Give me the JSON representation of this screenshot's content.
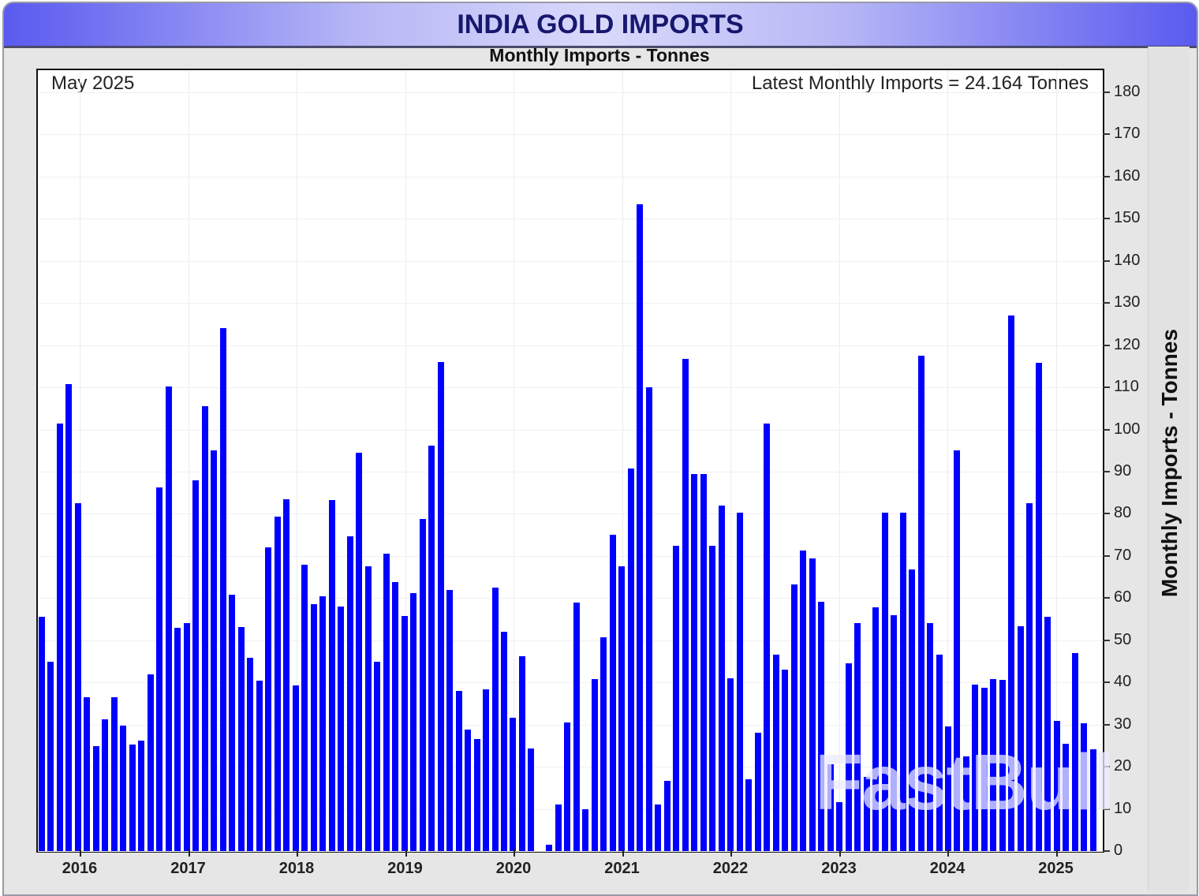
{
  "header": {
    "title": "INDIA GOLD IMPORTS",
    "subtitle": "Monthly Imports - Tonnes"
  },
  "annotations": {
    "date": "May 2025",
    "latest": "Latest Monthly Imports = 24.164 Tonnes",
    "watermark": "FastBull"
  },
  "colors": {
    "bar": "#0000ff",
    "banner_edge": "#5a5af0",
    "banner_center": "#d9d9fb",
    "title_text": "#17176e"
  },
  "chart_data": {
    "type": "bar",
    "title": "INDIA GOLD IMPORTS",
    "subtitle": "Monthly Imports - Tonnes",
    "xlabel": "",
    "ylabel": "Monthly Imports - Tonnes",
    "ylim": [
      0,
      180
    ],
    "yticks": [
      0,
      10,
      20,
      30,
      40,
      50,
      60,
      70,
      80,
      90,
      100,
      110,
      120,
      130,
      140,
      150,
      160,
      170,
      180
    ],
    "xticks": [
      "2016",
      "2017",
      "2018",
      "2019",
      "2020",
      "2021",
      "2022",
      "2023",
      "2024",
      "2025"
    ],
    "grid": true,
    "legend": null,
    "y_axis_position": "right",
    "start_month": "2015-09",
    "end_month": "2025-05",
    "categories": [
      "2015-09",
      "2015-10",
      "2015-11",
      "2015-12",
      "2016-01",
      "2016-02",
      "2016-03",
      "2016-04",
      "2016-05",
      "2016-06",
      "2016-07",
      "2016-08",
      "2016-09",
      "2016-10",
      "2016-11",
      "2016-12",
      "2017-01",
      "2017-02",
      "2017-03",
      "2017-04",
      "2017-05",
      "2017-06",
      "2017-07",
      "2017-08",
      "2017-09",
      "2017-10",
      "2017-11",
      "2017-12",
      "2018-01",
      "2018-02",
      "2018-03",
      "2018-04",
      "2018-05",
      "2018-06",
      "2018-07",
      "2018-08",
      "2018-09",
      "2018-10",
      "2018-11",
      "2018-12",
      "2019-01",
      "2019-02",
      "2019-03",
      "2019-04",
      "2019-05",
      "2019-06",
      "2019-07",
      "2019-08",
      "2019-09",
      "2019-10",
      "2019-11",
      "2019-12",
      "2020-01",
      "2020-02",
      "2020-03",
      "2020-04",
      "2020-05",
      "2020-06",
      "2020-07",
      "2020-08",
      "2020-09",
      "2020-10",
      "2020-11",
      "2020-12",
      "2021-01",
      "2021-02",
      "2021-03",
      "2021-04",
      "2021-05",
      "2021-06",
      "2021-07",
      "2021-08",
      "2021-09",
      "2021-10",
      "2021-11",
      "2021-12",
      "2022-01",
      "2022-02",
      "2022-03",
      "2022-04",
      "2022-05",
      "2022-06",
      "2022-07",
      "2022-08",
      "2022-09",
      "2022-10",
      "2022-11",
      "2022-12",
      "2023-01",
      "2023-02",
      "2023-03",
      "2023-04",
      "2023-05",
      "2023-06",
      "2023-07",
      "2023-08",
      "2023-09",
      "2023-10",
      "2023-11",
      "2023-12",
      "2024-01",
      "2024-02",
      "2024-03",
      "2024-04",
      "2024-05",
      "2024-06",
      "2024-07",
      "2024-08",
      "2024-09",
      "2024-10",
      "2024-11",
      "2024-12",
      "2025-01",
      "2025-02",
      "2025-03",
      "2025-04",
      "2025-05"
    ],
    "values": [
      55.6,
      45.0,
      101.5,
      110.8,
      82.5,
      36.5,
      24.8,
      31.2,
      36.5,
      29.8,
      25.3,
      26.2,
      42.0,
      86.2,
      110.2,
      53.0,
      54.0,
      88.0,
      105.6,
      95.0,
      124.0,
      60.9,
      53.2,
      45.8,
      40.4,
      72.0,
      79.4,
      83.4,
      39.3,
      68.0,
      58.6,
      60.5,
      83.2,
      58.1,
      74.7,
      94.5,
      67.6,
      45.0,
      70.6,
      63.8,
      55.8,
      61.2,
      78.8,
      96.2,
      116.0,
      62.0,
      38.0,
      28.8,
      26.5,
      38.3,
      62.5,
      52.0,
      31.6,
      46.2,
      24.3,
      0.0,
      1.5,
      11.0,
      30.5,
      58.9,
      9.9,
      40.8,
      50.7,
      75.0,
      67.6,
      90.8,
      153.5,
      110.0,
      11.0,
      16.7,
      72.4,
      116.8,
      89.4,
      89.4,
      72.4,
      82.0,
      41.0,
      80.3,
      17.0,
      28.0,
      101.5,
      46.6,
      43.0,
      63.2,
      71.3,
      69.5,
      59.2,
      20.5,
      11.6,
      44.5,
      54.0,
      17.5,
      57.8,
      80.3,
      56.0,
      80.3,
      66.8,
      117.6,
      54.0,
      46.6,
      29.5,
      95.0,
      22.4,
      39.5,
      38.7,
      40.8,
      40.6,
      127.0,
      53.4,
      82.5,
      115.8,
      55.6,
      30.8,
      25.5,
      47.0,
      30.3,
      24.164
    ]
  }
}
